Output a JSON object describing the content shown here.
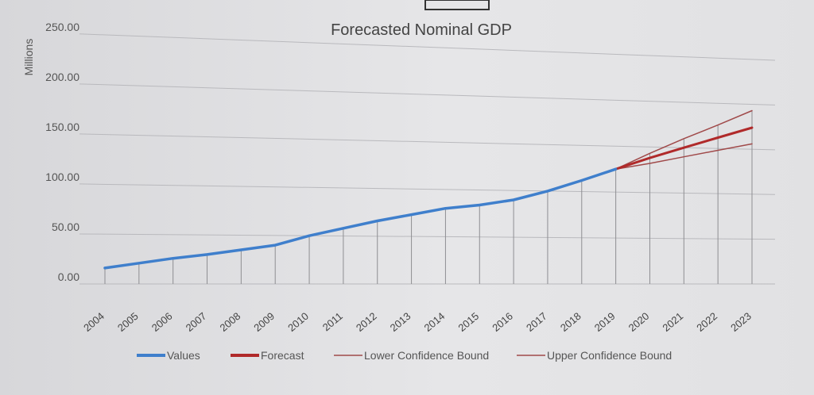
{
  "chart_data": {
    "type": "line",
    "title": "Forecasted Nominal GDP",
    "ylabel": "Millions",
    "xlabel": "",
    "categories": [
      "2004",
      "2005",
      "2006",
      "2007",
      "2008",
      "2009",
      "2010",
      "2011",
      "2012",
      "2013",
      "2014",
      "2015",
      "2016",
      "2017",
      "2018",
      "2019",
      "2020",
      "2021",
      "2022",
      "2023"
    ],
    "y_tick_labels": [
      "0.00",
      "50.00",
      "100.00",
      "150.00",
      "200.00",
      "250.00"
    ],
    "ylim": [
      0,
      250
    ],
    "grid": true,
    "legend_position": "bottom",
    "series": [
      {
        "name": "Values",
        "color": "#3f7fcc",
        "values": [
          16,
          21,
          26,
          30,
          35,
          40,
          50,
          58,
          66,
          73,
          80,
          84,
          90,
          100,
          112,
          125,
          null,
          null,
          null,
          null
        ]
      },
      {
        "name": "Forecast",
        "color": "#b02a2a",
        "values": [
          null,
          null,
          null,
          null,
          null,
          null,
          null,
          null,
          null,
          null,
          null,
          null,
          null,
          null,
          null,
          125,
          138,
          150,
          162,
          174
        ]
      },
      {
        "name": "Lower Confidence Bound",
        "color": "#a04a4a",
        "values": [
          null,
          null,
          null,
          null,
          null,
          null,
          null,
          null,
          null,
          null,
          null,
          null,
          null,
          null,
          null,
          125,
          132,
          140,
          148,
          156
        ]
      },
      {
        "name": "Upper Confidence Bound",
        "color": "#a04a4a",
        "values": [
          null,
          null,
          null,
          null,
          null,
          null,
          null,
          null,
          null,
          null,
          null,
          null,
          null,
          null,
          null,
          125,
          143,
          160,
          176,
          193
        ]
      }
    ]
  }
}
